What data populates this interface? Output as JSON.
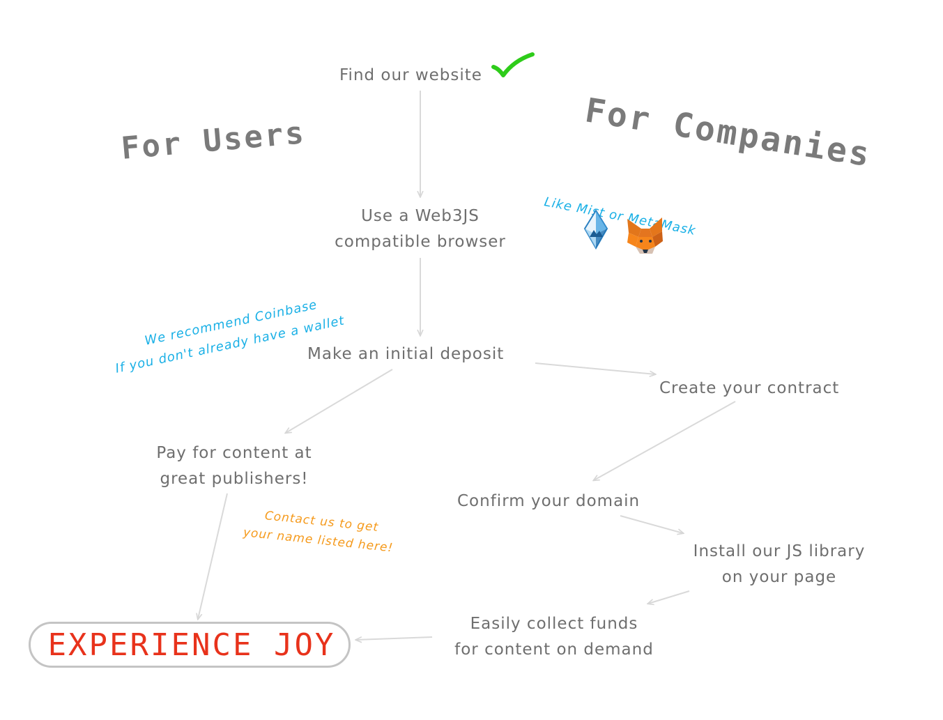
{
  "headings": {
    "users": "For Users",
    "companies": "For Companies"
  },
  "steps": {
    "find_website": "Find our website",
    "use_browser_line1": "Use a Web3JS",
    "use_browser_line2": "compatible browser",
    "deposit": "Make an initial deposit",
    "pay_line1": "Pay for content at",
    "pay_line2": "great publishers!",
    "create_contract": "Create your contract",
    "confirm_domain": "Confirm your domain",
    "install_line1": "Install our JS library",
    "install_line2": "on your page",
    "collect_line1": "Easily collect funds",
    "collect_line2": "for content on demand"
  },
  "notes": {
    "browsers": "Like Mist or MetaMask",
    "coinbase_line1": "We recommend Coinbase",
    "coinbase_line2": "If you don't already have a wallet",
    "contact_line1": "Contact us to get",
    "contact_line2": "your name listed here!"
  },
  "final": "EXPERIENCE JOY",
  "icons": {
    "check": "checkmark-icon",
    "mist": "mist-ethereum-icon",
    "metamask": "metamask-fox-icon"
  },
  "colors": {
    "text": "#6e6e6e",
    "note_blue": "#1ab0e6",
    "note_orange": "#f59a1c",
    "joy_red": "#e8321b",
    "check_green": "#2ecc1a",
    "arrow": "#d6d6d6"
  }
}
